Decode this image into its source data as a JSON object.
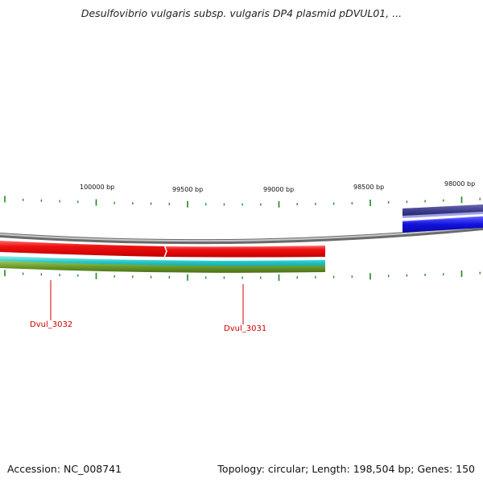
{
  "title": "Desulfovibrio vulgaris subsp. vulgaris DP4 plasmid pDVUL01, ...",
  "footer": {
    "accession_label": "Accession:",
    "accession": "NC_008741",
    "topology_label": "Topology:",
    "topology": "circular;",
    "length_label": "Length:",
    "length": "198,504 bp;",
    "genes_label": "Genes:",
    "genes": "150"
  },
  "scale_labels": [
    {
      "bp": 100000,
      "text": "100000 bp"
    },
    {
      "bp": 99500,
      "text": "99500 bp"
    },
    {
      "bp": 99000,
      "text": "99000 bp"
    },
    {
      "bp": 98500,
      "text": "98500 bp"
    },
    {
      "bp": 98000,
      "text": "98000 bp"
    }
  ],
  "gene_labels": [
    {
      "id": "Dvul_3032",
      "text": "Dvul_3032"
    },
    {
      "id": "Dvul_3031",
      "text": "Dvul_3031"
    }
  ],
  "colors": {
    "tick": "#1a8a1a",
    "backbone": "#8a8a8a",
    "gene_red": "#ee1111",
    "gene_blue": "#1111dd",
    "gene_navy": "#3a3a8a",
    "gene_lavender": "#9a9ae0",
    "cyan_track": "#22c8c8",
    "olive_track": "#6a9a2a",
    "label_red": "#cc0000"
  }
}
